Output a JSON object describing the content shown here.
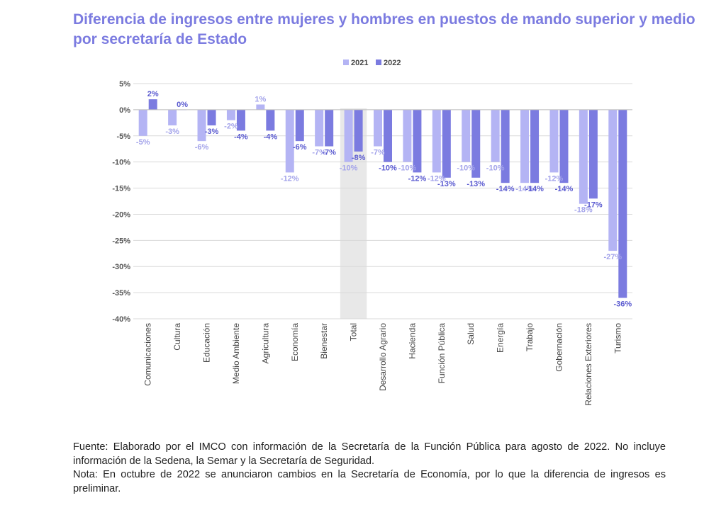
{
  "title": "Diferencia de ingresos entre mujeres y hombres en puestos de mando superior y medio por secretaría de Estado",
  "colors": {
    "title": "#7b7be0",
    "series_2021": "#b4b4f4",
    "series_2022": "#7b7be0",
    "highlight": "#e8e8e8",
    "grid": "#d9d9d9"
  },
  "chart_data": {
    "type": "bar",
    "title": "Diferencia de ingresos entre mujeres y hombres en puestos de mando superior y medio por secretaría de Estado",
    "xlabel": "",
    "ylabel": "",
    "ylim": [
      -40,
      5
    ],
    "yticks": [
      "5%",
      "0%",
      "-5%",
      "-10%",
      "-15%",
      "-20%",
      "-25%",
      "-30%",
      "-35%",
      "-40%"
    ],
    "grid": true,
    "legend_position": "top-center",
    "highlight_category": "Total",
    "categories": [
      "Comunicaciones",
      "Cultura",
      "Educación",
      "Medio Ambiente",
      "Agricultura",
      "Economía",
      "Bienestar",
      "Total",
      "Desarrollo Agrario",
      "Hacienda",
      "Función Pública",
      "Salud",
      "Energía",
      "Trabajo",
      "Gobernación",
      "Relaciones Exteriores",
      "Turismo"
    ],
    "series": [
      {
        "name": "2021",
        "values": [
          -5,
          -3,
          -6,
          -2,
          1,
          -12,
          -7,
          -10,
          -7,
          -10,
          -12,
          -10,
          -10,
          -14,
          -12,
          -18,
          -27
        ],
        "labels": [
          "-5%",
          "-3%",
          "-6%",
          "-2%",
          "1%",
          "-12%",
          "-7%",
          "-10%",
          "-7%",
          "-10%",
          "-12%",
          "-10%",
          "-10%",
          "-14%",
          "-12%",
          "-18%",
          "-27%"
        ]
      },
      {
        "name": "2022",
        "values": [
          2,
          0,
          -3,
          -4,
          -4,
          -6,
          -7,
          -8,
          -10,
          -12,
          -13,
          -13,
          -14,
          -14,
          -14,
          -17,
          -36
        ],
        "labels": [
          "2%",
          "0%",
          "-3%",
          "-4%",
          "-4%",
          "-6%",
          "-7%",
          "-8%",
          "-10%",
          "-12%",
          "-13%",
          "-13%",
          "-14%",
          "-14%",
          "-14%",
          "-17%",
          "-36%"
        ]
      }
    ]
  },
  "notes": {
    "source": "Fuente: Elaborado por el IMCO con información de la Secretaría de la Función Pública para agosto de 2022. No incluye información de la Sedena, la Semar y la Secretaría de Seguridad.",
    "note": "Nota: En octubre de 2022 se anunciaron cambios en la Secretaría de Economía, por lo que la diferencia de ingresos es preliminar."
  }
}
